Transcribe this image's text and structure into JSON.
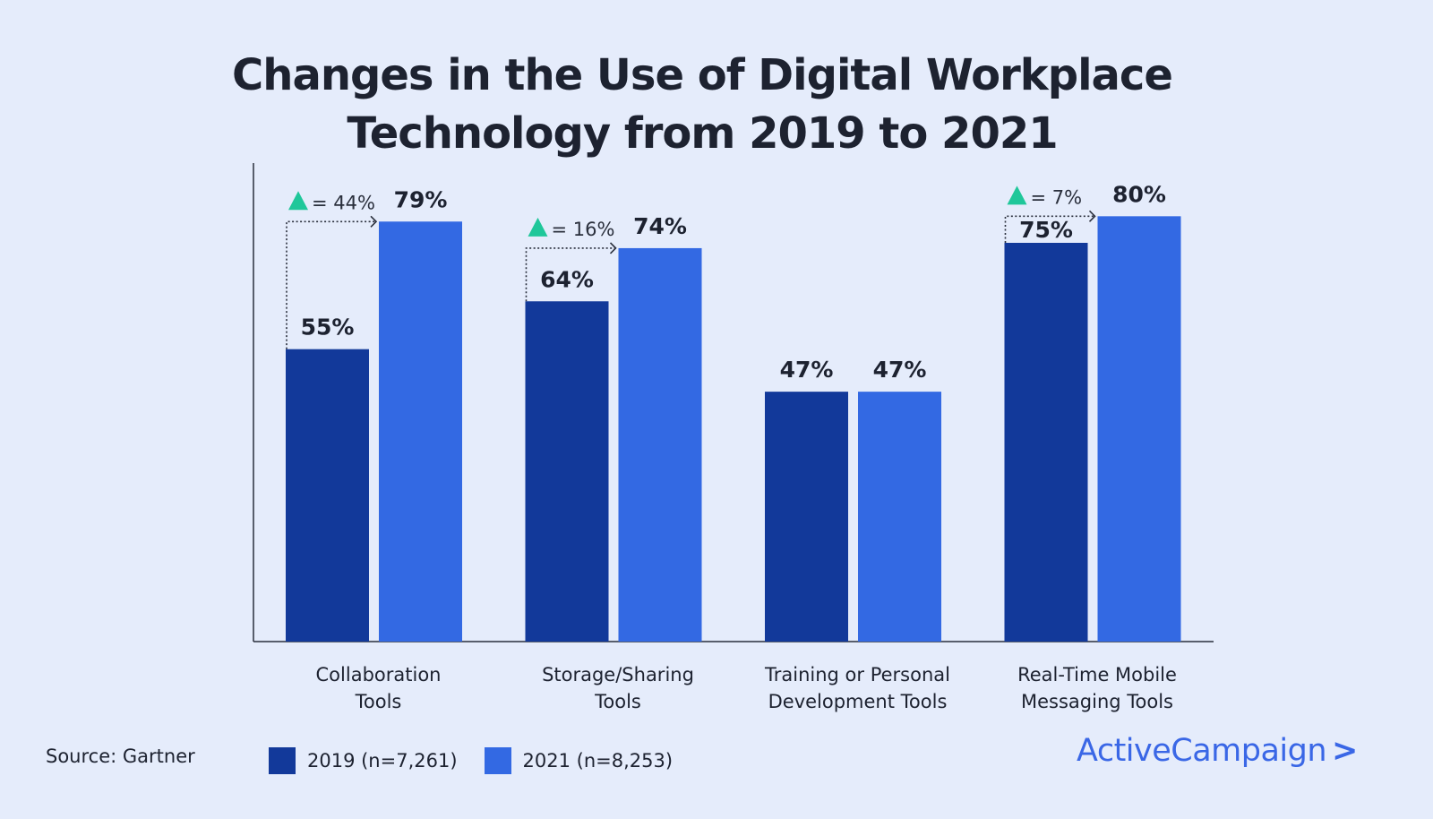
{
  "chart_data": {
    "type": "bar",
    "title": "Changes in the Use of Digital Workplace Technology from 2019 to 2021",
    "title_lines": [
      "Changes in the Use of Digital Workplace",
      "Technology from 2019 to 2021"
    ],
    "categories": [
      "Collaboration Tools",
      "Storage/Sharing Tools",
      "Training or Personal Development Tools",
      "Real-Time Mobile Messaging Tools"
    ],
    "category_lines": [
      [
        "Collaboration",
        "Tools"
      ],
      [
        "Storage/Sharing",
        "Tools"
      ],
      [
        "Training or Personal",
        "Development Tools"
      ],
      [
        "Real-Time Mobile",
        "Messaging Tools"
      ]
    ],
    "series": [
      {
        "name": "2019 (n=7,261)",
        "values": [
          55,
          64,
          47,
          75
        ],
        "color": "#12399a"
      },
      {
        "name": "2021 (n=8,253)",
        "values": [
          79,
          74,
          47,
          80
        ],
        "color": "#3369e3"
      }
    ],
    "data_labels": [
      [
        "55%",
        "64%",
        "47%",
        "75%"
      ],
      [
        "79%",
        "74%",
        "47%",
        "80%"
      ]
    ],
    "annotations": [
      "= 44%",
      "= 16%",
      null,
      "= 7%"
    ],
    "annotation_color": "#1fc79a",
    "ylim": [
      0,
      90
    ],
    "grid": false,
    "legend_placement": "bottom",
    "xlabel": "",
    "ylabel": ""
  },
  "source": "Source: Gartner",
  "brand": {
    "name": "ActiveCampaign",
    "mark": ">"
  },
  "background": "#e5ecfb"
}
